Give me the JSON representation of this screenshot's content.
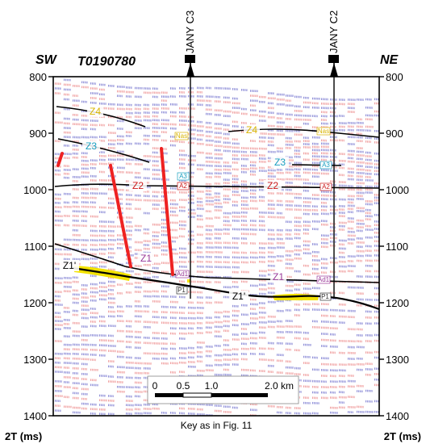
{
  "section": {
    "line_id": "T0190780",
    "left_direction": "SW",
    "right_direction": "NE",
    "axis_unit_label": "2T (ms)",
    "twt_ticks": [
      800,
      900,
      1000,
      1100,
      1200,
      1300,
      1400
    ],
    "twt_range": [
      800,
      1400
    ],
    "caption": "Key as in Fig. 11"
  },
  "wells": [
    {
      "name": "JANY C3"
    },
    {
      "name": "JANY C2"
    }
  ],
  "horizon_labels": {
    "z4_left": "Z4",
    "z4_right": "Z4",
    "z3_left": "Z3",
    "z3_right": "Z3",
    "z2_left": "Z2",
    "z2_right": "Z2",
    "z1_left": "Z1",
    "z1_right": "Z1",
    "z1p_left": "Z1'",
    "z1p_right": "Z1'"
  },
  "well_tops": {
    "c3_a3": "A3",
    "c3_a2": "A2",
    "c3_ad1": "Ad1",
    "c3_p1": "P1",
    "c3_nas": "Nas",
    "c2_a3": "A3",
    "c2_a2": "A2",
    "c2_ad1": "Ad1",
    "c2_p1": "P1",
    "c2_nas": "Nas"
  },
  "scale_bar": {
    "ticks": [
      "0",
      "0.5",
      "1.0",
      "2.0 km"
    ]
  },
  "colors": {
    "seismic_blue": "#8f8fd8",
    "seismic_red": "#f0a0a0",
    "fault": "#ee2222",
    "horizon": "#000000",
    "yellow_body": "#f2e200",
    "label_yellow": "#d9b400",
    "label_cyan": "#1aa0c0",
    "label_red": "#cc1a1a",
    "label_purple": "#9a3a9a"
  }
}
